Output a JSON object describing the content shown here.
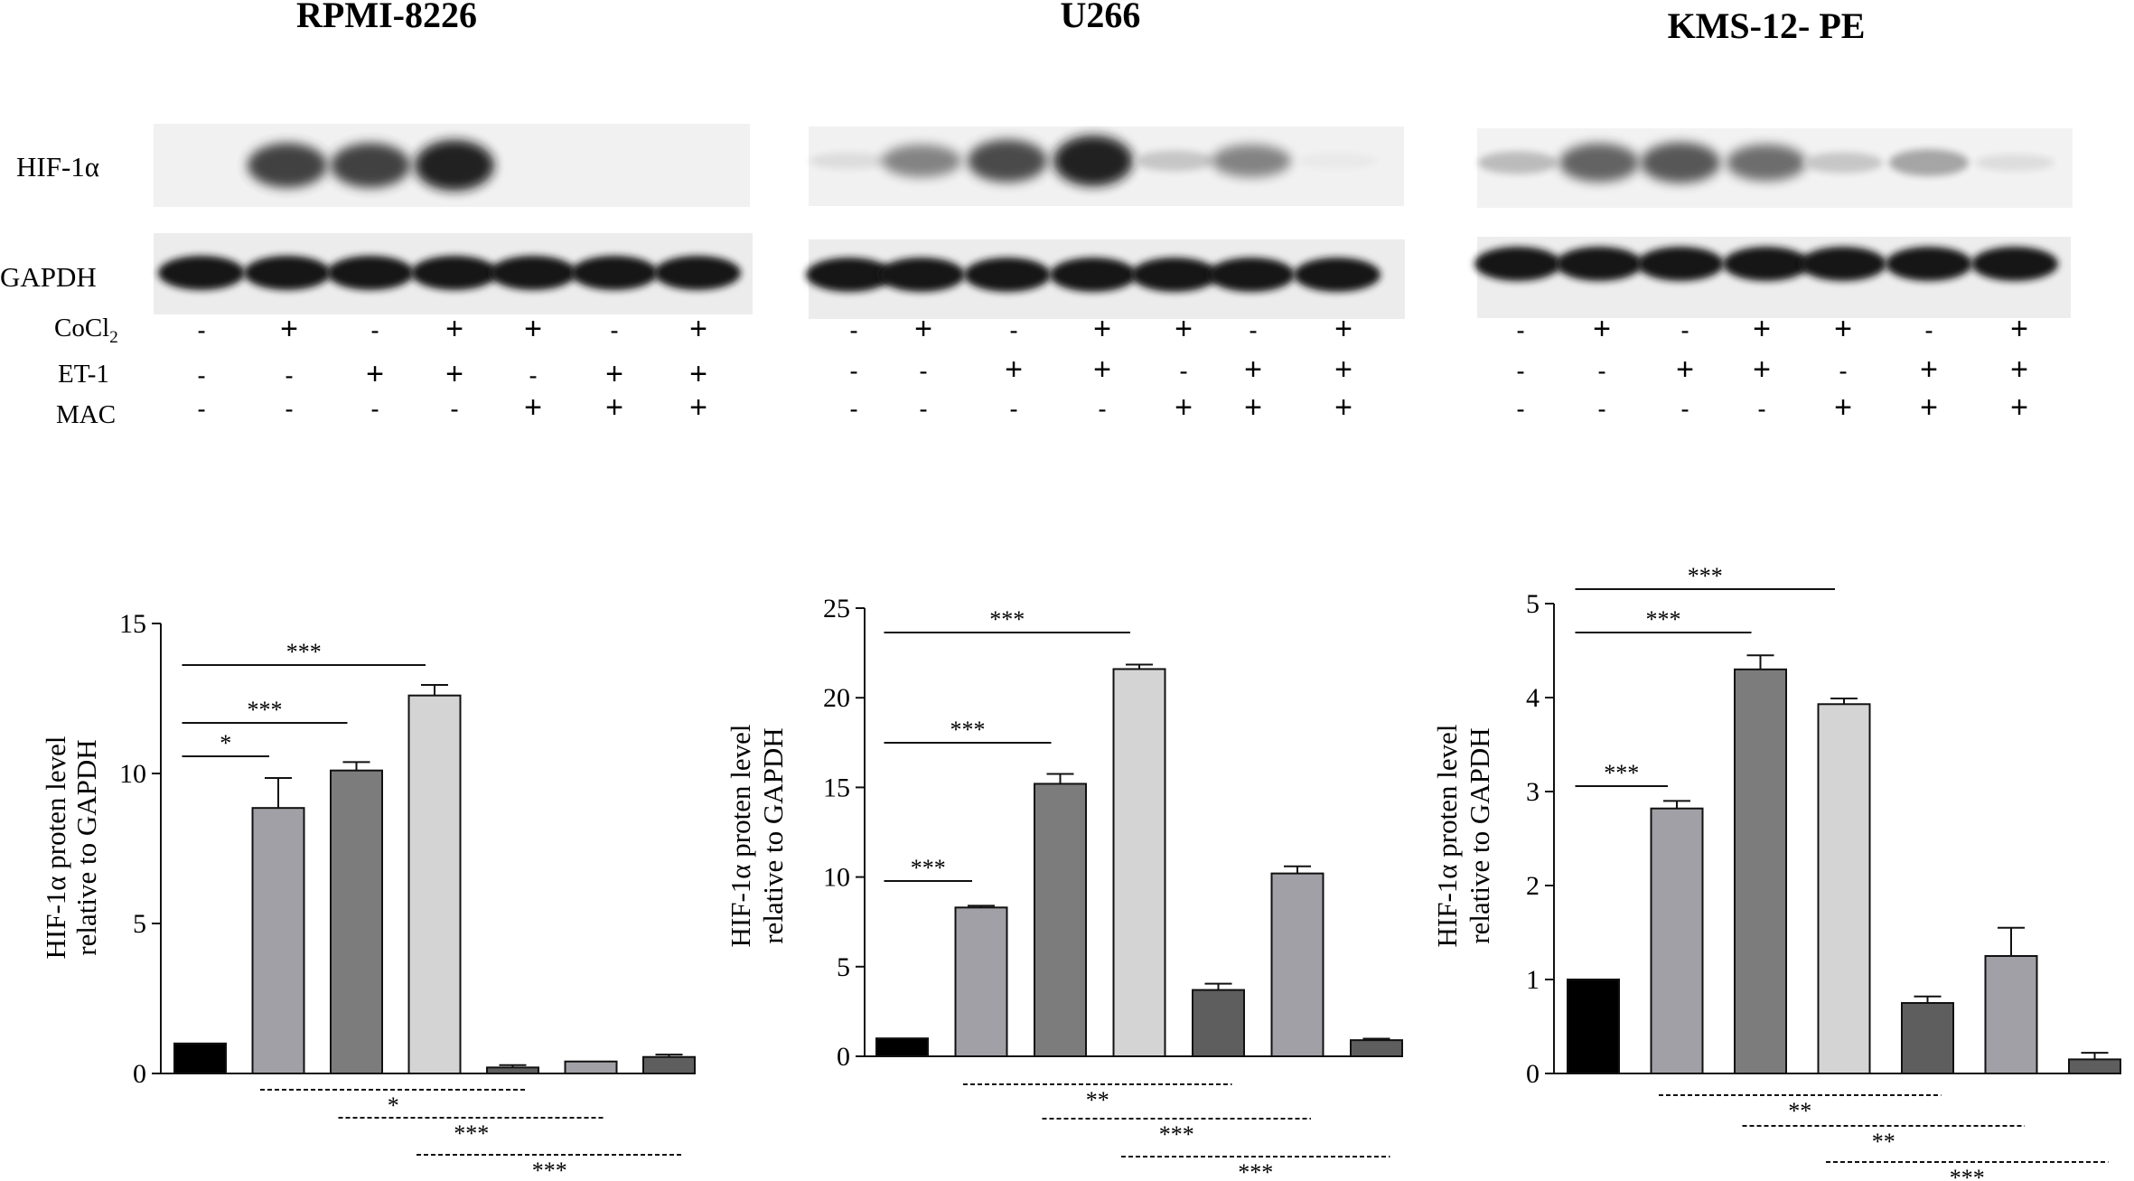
{
  "row_labels": {
    "hif": "HIF-1α",
    "gapdh": "GAPDH",
    "cocl2_base": "CoCl",
    "cocl2_sub": "2",
    "et1": "ET-1",
    "mac": "MAC"
  },
  "treatments": {
    "cocl2": [
      "-",
      "+",
      "-",
      "+",
      "+",
      "-",
      "+"
    ],
    "et1": [
      "-",
      "-",
      "+",
      "+",
      "-",
      "+",
      "+"
    ],
    "mac": [
      "-",
      "-",
      "-",
      "-",
      "+",
      "+",
      "+"
    ]
  },
  "bar_colors": [
    "#000000",
    "#a0a0a6",
    "#7c7c7c",
    "#d4d4d4",
    "#5e5e5e",
    "#a0a0a6",
    "#5e5e5e"
  ],
  "chart_data": [
    {
      "type": "bar",
      "title": "RPMI-8226",
      "ylabel_line1": "HIF-1α proten level",
      "ylabel_line2": "relative to GAPDH",
      "ylim": [
        0,
        15
      ],
      "yticks": [
        "0",
        "5",
        "10",
        "15"
      ],
      "values": [
        1.0,
        8.85,
        10.1,
        12.6,
        0.2,
        0.4,
        0.55
      ],
      "errors": [
        0,
        1.0,
        0.28,
        0.35,
        0.08,
        0,
        0.08
      ],
      "hif_band_intensity": [
        0.0,
        0.85,
        0.85,
        1.0,
        0.0,
        0.0,
        0.0
      ],
      "sig_top": [
        {
          "from": 0,
          "to": 1,
          "label": "*"
        },
        {
          "from": 0,
          "to": 2,
          "label": "***"
        },
        {
          "from": 0,
          "to": 3,
          "label": "***"
        }
      ],
      "sig_bottom": [
        {
          "from": 1,
          "to": 4,
          "label": "*"
        },
        {
          "from": 2,
          "to": 5,
          "label": "***"
        },
        {
          "from": 3,
          "to": 6,
          "label": "***"
        }
      ]
    },
    {
      "type": "bar",
      "title": "U266",
      "ylabel_line1": "HIF-1α proten level",
      "ylabel_line2": "relative to GAPDH",
      "ylim": [
        0,
        25
      ],
      "yticks": [
        "0",
        "5",
        "10",
        "15",
        "20",
        "25"
      ],
      "values": [
        1.0,
        8.3,
        15.2,
        21.6,
        3.7,
        10.2,
        0.9
      ],
      "errors": [
        0,
        0.1,
        0.55,
        0.25,
        0.35,
        0.4,
        0.08
      ],
      "hif_band_intensity": [
        0.15,
        0.55,
        0.8,
        1.0,
        0.25,
        0.55,
        0.1
      ],
      "sig_top": [
        {
          "from": 0,
          "to": 1,
          "label": "***"
        },
        {
          "from": 0,
          "to": 2,
          "label": "***"
        },
        {
          "from": 0,
          "to": 3,
          "label": "***"
        }
      ],
      "sig_bottom": [
        {
          "from": 1,
          "to": 4,
          "label": "**"
        },
        {
          "from": 2,
          "to": 5,
          "label": "***"
        },
        {
          "from": 3,
          "to": 6,
          "label": "***"
        }
      ]
    },
    {
      "type": "bar",
      "title": "KMS-12- PE",
      "ylabel_line1": "HIF-1α proten level",
      "ylabel_line2": "relative to GAPDH",
      "ylim": [
        0,
        5
      ],
      "yticks": [
        "0",
        "1",
        "2",
        "3",
        "4",
        "5"
      ],
      "values": [
        1.0,
        2.82,
        4.3,
        3.93,
        0.75,
        1.25,
        0.15
      ],
      "errors": [
        0,
        0.08,
        0.15,
        0.06,
        0.07,
        0.3,
        0.07
      ],
      "hif_band_intensity": [
        0.3,
        0.7,
        0.75,
        0.65,
        0.25,
        0.4,
        0.15
      ],
      "sig_top": [
        {
          "from": 0,
          "to": 1,
          "label": "***"
        },
        {
          "from": 0,
          "to": 2,
          "label": "***"
        },
        {
          "from": 0,
          "to": 3,
          "label": "***"
        }
      ],
      "sig_bottom": [
        {
          "from": 1,
          "to": 4,
          "label": "**"
        },
        {
          "from": 2,
          "to": 5,
          "label": "**"
        },
        {
          "from": 3,
          "to": 6,
          "label": "***"
        }
      ]
    }
  ]
}
